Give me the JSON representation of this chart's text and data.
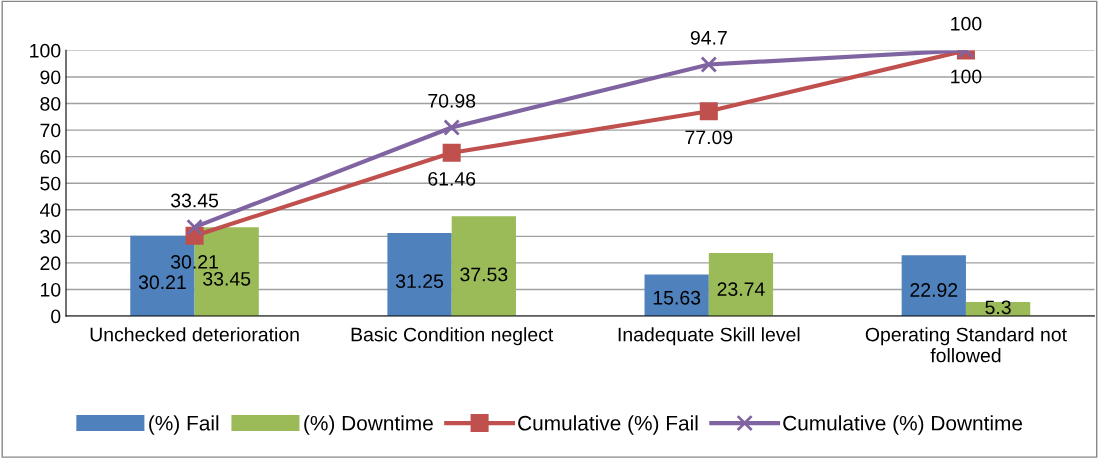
{
  "chart_data": {
    "type": "bar",
    "categories": [
      "Unchecked deterioration",
      "Basic Condition neglect",
      "Inadequate Skill level",
      "Operating Standard not followed"
    ],
    "series": [
      {
        "name": "(%) Fail",
        "color": "#4f81bd",
        "values": [
          30.21,
          31.25,
          15.63,
          22.92
        ]
      },
      {
        "name": "(%) Downtime",
        "color": "#9bbb59",
        "values": [
          33.45,
          37.53,
          23.74,
          5.3
        ]
      },
      {
        "name": "Cumulative (%) Fail",
        "type": "line",
        "color": "#c0504d",
        "marker": "square",
        "values": [
          30.21,
          61.46,
          77.09,
          100
        ]
      },
      {
        "name": "Cumulative (%) Downtime",
        "type": "line",
        "color": "#8064a2",
        "marker": "cross",
        "values": [
          33.45,
          70.98,
          94.7,
          100
        ]
      }
    ],
    "ylim": [
      0,
      100
    ],
    "yticks": [
      0,
      10,
      20,
      30,
      40,
      50,
      60,
      70,
      80,
      90,
      100
    ],
    "grid": "y",
    "legend": "bottom",
    "data_labels": true,
    "line_style": "solid"
  }
}
